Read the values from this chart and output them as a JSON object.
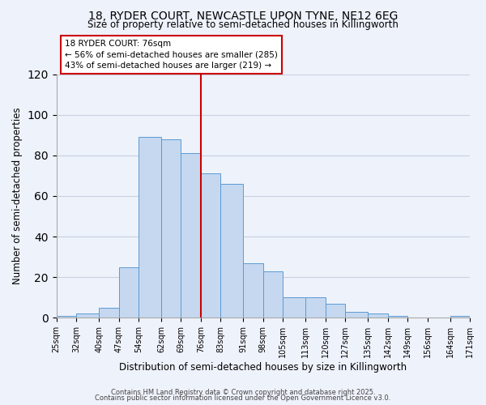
{
  "title": "18, RYDER COURT, NEWCASTLE UPON TYNE, NE12 6EG",
  "subtitle": "Size of property relative to semi-detached houses in Killingworth",
  "xlabel": "Distribution of semi-detached houses by size in Killingworth",
  "ylabel": "Number of semi-detached properties",
  "bin_labels": [
    "25sqm",
    "32sqm",
    "40sqm",
    "47sqm",
    "54sqm",
    "62sqm",
    "69sqm",
    "76sqm",
    "83sqm",
    "91sqm",
    "98sqm",
    "105sqm",
    "113sqm",
    "120sqm",
    "127sqm",
    "135sqm",
    "142sqm",
    "149sqm",
    "156sqm",
    "164sqm",
    "171sqm"
  ],
  "bin_edges": [
    25,
    32,
    40,
    47,
    54,
    62,
    69,
    76,
    83,
    91,
    98,
    105,
    113,
    120,
    127,
    135,
    142,
    149,
    156,
    164,
    171
  ],
  "bar_heights": [
    1,
    2,
    5,
    25,
    89,
    88,
    81,
    71,
    66,
    27,
    23,
    10,
    10,
    7,
    3,
    2,
    1,
    0,
    0,
    1
  ],
  "bar_color": "#c5d8f0",
  "bar_edge_color": "#5b9bd5",
  "marker_value": 76,
  "marker_color": "#cc0000",
  "annotation_title": "18 RYDER COURT: 76sqm",
  "annotation_line1": "← 56% of semi-detached houses are smaller (285)",
  "annotation_line2": "43% of semi-detached houses are larger (219) →",
  "ylim": [
    0,
    120
  ],
  "yticks": [
    0,
    20,
    40,
    60,
    80,
    100,
    120
  ],
  "footer1": "Contains HM Land Registry data © Crown copyright and database right 2025.",
  "footer2": "Contains public sector information licensed under the Open Government Licence v3.0.",
  "bg_color": "#eef2fb",
  "plot_bg_color": "#eef2fb",
  "grid_color": "#c8d0e0"
}
